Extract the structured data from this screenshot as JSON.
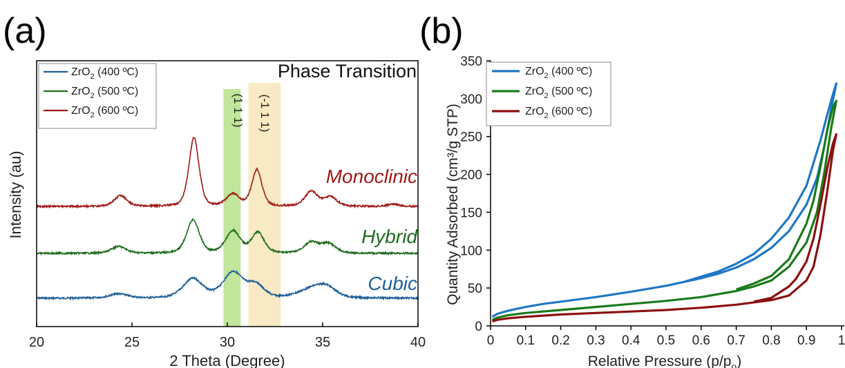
{
  "colors": {
    "c400": "#1f5f99",
    "c500": "#1f6b1f",
    "c600": "#a01818",
    "b400": "#1f77c4",
    "b500": "#1a7a1a",
    "b600": "#8b1010",
    "band111": "#b5e08a",
    "bandm111": "#f5e3b0"
  },
  "chart_data": [
    {
      "panel_label": "(a)",
      "type": "line",
      "xlabel": "2 Theta (Degree)",
      "ylabel": "Intensity (au)",
      "xlim": [
        20,
        40
      ],
      "x_ticks": [
        "20",
        "25",
        "30",
        "35",
        "40"
      ],
      "annotations": {
        "header": "Phase Transition",
        "band_111": "(1 1 1)",
        "band_m111": "(-1 1 1)",
        "monoclinic": "Monoclinic",
        "hybrid": "Hybrid",
        "cubic": "Cubic"
      },
      "bands": [
        {
          "label": "(1 1 1)",
          "x": [
            29.8,
            30.7
          ]
        },
        {
          "label": "(-1 1 1)",
          "x": [
            31.1,
            32.8
          ]
        }
      ],
      "legend": [
        {
          "base": "ZrO",
          "sub": "2",
          "temp": " (400 ºC)"
        },
        {
          "base": "ZrO",
          "sub": "2",
          "temp": " (500 ºC)"
        },
        {
          "base": "ZrO",
          "sub": "2",
          "temp": " (600 ºC)"
        }
      ],
      "series": [
        {
          "name": "ZrO2 (400 ºC)",
          "peaks": [
            [
              24.3,
              0.5,
              0.1
            ],
            [
              28.2,
              0.55,
              0.45
            ],
            [
              30.3,
              0.55,
              0.6
            ],
            [
              31.5,
              0.45,
              0.3
            ],
            [
              34.5,
              0.8,
              0.22
            ],
            [
              35.2,
              0.5,
              0.18
            ]
          ]
        },
        {
          "name": "ZrO2 (500 ºC)",
          "peaks": [
            [
              24.3,
              0.4,
              0.16
            ],
            [
              28.2,
              0.35,
              0.78
            ],
            [
              30.3,
              0.4,
              0.52
            ],
            [
              31.6,
              0.35,
              0.48
            ],
            [
              34.4,
              0.4,
              0.25
            ],
            [
              35.3,
              0.4,
              0.22
            ]
          ]
        },
        {
          "name": "ZrO2 (600 ºC)",
          "peaks": [
            [
              24.4,
              0.35,
              0.25
            ],
            [
              28.25,
              0.28,
              1.6
            ],
            [
              30.3,
              0.35,
              0.28
            ],
            [
              31.55,
              0.28,
              0.85
            ],
            [
              34.4,
              0.35,
              0.35
            ],
            [
              35.4,
              0.35,
              0.22
            ],
            [
              38.7,
              0.3,
              0.05
            ]
          ]
        }
      ]
    },
    {
      "panel_label": "(b)",
      "type": "line",
      "xlabel_main": "Relative Pressure (p/p",
      "xlabel_sub": "o",
      "xlabel_end": ")",
      "ylabel": "Quantity Adsorbed (cm³/g STP)",
      "xlim": [
        0,
        1
      ],
      "ylim": [
        0,
        350
      ],
      "x_ticks": [
        "0",
        "0.1",
        "0.2",
        "0.3",
        "0.4",
        "0.5",
        "0.6",
        "0.7",
        "0.8",
        "0.9",
        "1"
      ],
      "y_ticks": [
        "0",
        "50",
        "100",
        "150",
        "200",
        "250",
        "300",
        "350"
      ],
      "legend": [
        {
          "base": "ZrO",
          "sub": "2",
          "temp": " (400 ºC)"
        },
        {
          "base": "ZrO",
          "sub": "2",
          "temp": " (500 ºC)"
        },
        {
          "base": "ZrO",
          "sub": "2",
          "temp": " (600 ºC)"
        }
      ],
      "series": [
        {
          "name": "ZrO2 (400 ºC)",
          "x": [
            0.005,
            0.02,
            0.05,
            0.1,
            0.15,
            0.2,
            0.3,
            0.4,
            0.5,
            0.6,
            0.65,
            0.7,
            0.75,
            0.8,
            0.85,
            0.9,
            0.93,
            0.95,
            0.97,
            0.985,
            0.975,
            0.96,
            0.94,
            0.92,
            0.9,
            0.85,
            0.8,
            0.75,
            0.7,
            0.65,
            0.6,
            0.55,
            0.5
          ],
          "y": [
            12,
            16,
            20,
            25,
            29,
            32,
            38,
            45,
            53,
            63,
            69,
            77,
            88,
            103,
            125,
            160,
            195,
            235,
            285,
            320,
            305,
            280,
            245,
            215,
            185,
            143,
            115,
            95,
            82,
            72,
            65,
            58,
            53
          ]
        },
        {
          "name": "ZrO2 (500 ºC)",
          "x": [
            0.005,
            0.02,
            0.05,
            0.1,
            0.2,
            0.3,
            0.4,
            0.5,
            0.6,
            0.7,
            0.75,
            0.8,
            0.85,
            0.9,
            0.93,
            0.95,
            0.97,
            0.985,
            0.975,
            0.96,
            0.94,
            0.92,
            0.9,
            0.85,
            0.8,
            0.75,
            0.7
          ],
          "y": [
            8,
            11,
            14,
            17,
            21,
            25,
            29,
            33,
            38,
            46,
            52,
            60,
            78,
            110,
            150,
            200,
            260,
            297,
            288,
            260,
            210,
            165,
            135,
            88,
            66,
            56,
            48
          ]
        },
        {
          "name": "ZrO2 (600 ºC)",
          "x": [
            0.005,
            0.02,
            0.05,
            0.1,
            0.2,
            0.3,
            0.4,
            0.5,
            0.6,
            0.7,
            0.8,
            0.85,
            0.9,
            0.92,
            0.94,
            0.96,
            0.975,
            0.985,
            0.975,
            0.96,
            0.94,
            0.92,
            0.9,
            0.87,
            0.85,
            0.8,
            0.75
          ],
          "y": [
            6,
            8,
            10,
            12,
            15,
            17,
            19,
            21,
            24,
            28,
            34,
            40,
            60,
            78,
            120,
            180,
            230,
            253,
            240,
            210,
            160,
            115,
            85,
            62,
            52,
            37,
            32
          ]
        }
      ]
    }
  ]
}
